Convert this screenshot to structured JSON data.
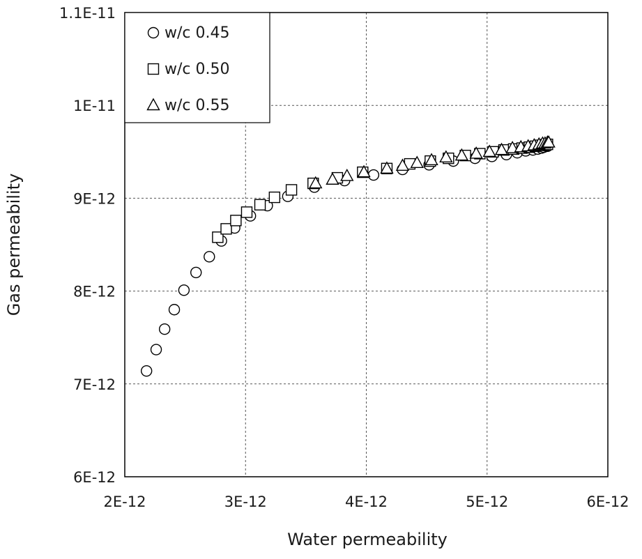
{
  "chart_data": {
    "type": "scatter",
    "xlabel": "Water permeability",
    "ylabel": "Gas permeability",
    "xlim": [
      2e-12,
      6e-12
    ],
    "ylim": [
      6e-12,
      1.1e-11
    ],
    "x_ticks": [
      {
        "value": 2e-12,
        "label": "2E-12"
      },
      {
        "value": 3e-12,
        "label": "3E-12"
      },
      {
        "value": 4e-12,
        "label": "4E-12"
      },
      {
        "value": 5e-12,
        "label": "5E-12"
      },
      {
        "value": 6e-12,
        "label": "6E-12"
      }
    ],
    "y_ticks": [
      {
        "value": 6e-12,
        "label": "6E-12"
      },
      {
        "value": 7e-12,
        "label": "7E-12"
      },
      {
        "value": 8e-12,
        "label": "8E-12"
      },
      {
        "value": 9e-12,
        "label": "9E-12"
      },
      {
        "value": 1e-11,
        "label": "1E-11"
      },
      {
        "value": 1.1e-11,
        "label": "1.1E-11"
      }
    ],
    "grid": true,
    "legend_position": "top-left",
    "series": [
      {
        "name": "w/c 0.45",
        "marker": "circle",
        "x": [
          2.18e-12,
          2.26e-12,
          2.33e-12,
          2.41e-12,
          2.49e-12,
          2.59e-12,
          2.7e-12,
          2.8e-12,
          2.91e-12,
          3.04e-12,
          3.18e-12,
          3.35e-12,
          3.57e-12,
          3.82e-12,
          4.06e-12,
          4.3e-12,
          4.52e-12,
          4.72e-12,
          4.9e-12,
          5.04e-12,
          5.16e-12,
          5.25e-12,
          5.32e-12,
          5.38e-12,
          5.42e-12,
          5.45e-12,
          5.47e-12,
          5.49e-12,
          5.5e-12
        ],
        "y": [
          7.14e-12,
          7.37e-12,
          7.59e-12,
          7.8e-12,
          8.01e-12,
          8.2e-12,
          8.37e-12,
          8.54e-12,
          8.68e-12,
          8.81e-12,
          8.92e-12,
          9.02e-12,
          9.12e-12,
          9.19e-12,
          9.25e-12,
          9.31e-12,
          9.36e-12,
          9.4e-12,
          9.43e-12,
          9.45e-12,
          9.47e-12,
          9.49e-12,
          9.51e-12,
          9.52e-12,
          9.53e-12,
          9.54e-12,
          9.55e-12,
          9.56e-12,
          9.56e-12
        ]
      },
      {
        "name": "w/c 0.50",
        "marker": "square",
        "x": [
          2.77e-12,
          2.84e-12,
          2.92e-12,
          3.01e-12,
          3.12e-12,
          3.24e-12,
          3.38e-12,
          3.56e-12,
          3.76e-12,
          3.97e-12,
          4.17e-12,
          4.36e-12,
          4.53e-12,
          4.68e-12,
          4.82e-12,
          4.94e-12,
          5.05e-12,
          5.14e-12,
          5.22e-12,
          5.29e-12,
          5.35e-12,
          5.4e-12,
          5.44e-12,
          5.47e-12,
          5.49e-12,
          5.5e-12
        ],
        "y": [
          8.58e-12,
          8.67e-12,
          8.76e-12,
          8.85e-12,
          8.93e-12,
          9.01e-12,
          9.09e-12,
          9.16e-12,
          9.22e-12,
          9.28e-12,
          9.32e-12,
          9.37e-12,
          9.4e-12,
          9.43e-12,
          9.46e-12,
          9.48e-12,
          9.5e-12,
          9.52e-12,
          9.53e-12,
          9.54e-12,
          9.55e-12,
          9.56e-12,
          9.57e-12,
          9.57e-12,
          9.58e-12,
          9.58e-12
        ]
      },
      {
        "name": "w/c 0.55",
        "marker": "triangle",
        "x": [
          3.58e-12,
          3.72e-12,
          3.84e-12,
          3.98e-12,
          4.17e-12,
          4.3e-12,
          4.42e-12,
          4.54e-12,
          4.66e-12,
          4.79e-12,
          4.91e-12,
          5.02e-12,
          5.12e-12,
          5.21e-12,
          5.28e-12,
          5.34e-12,
          5.39e-12,
          5.43e-12,
          5.46e-12,
          5.48e-12,
          5.5e-12,
          5.51e-12
        ],
        "y": [
          9.16e-12,
          9.2e-12,
          9.24e-12,
          9.28e-12,
          9.32e-12,
          9.35e-12,
          9.38e-12,
          9.41e-12,
          9.44e-12,
          9.46e-12,
          9.48e-12,
          9.5e-12,
          9.52e-12,
          9.54e-12,
          9.55e-12,
          9.56e-12,
          9.57e-12,
          9.58e-12,
          9.59e-12,
          9.59e-12,
          9.6e-12,
          9.6e-12
        ]
      }
    ]
  }
}
